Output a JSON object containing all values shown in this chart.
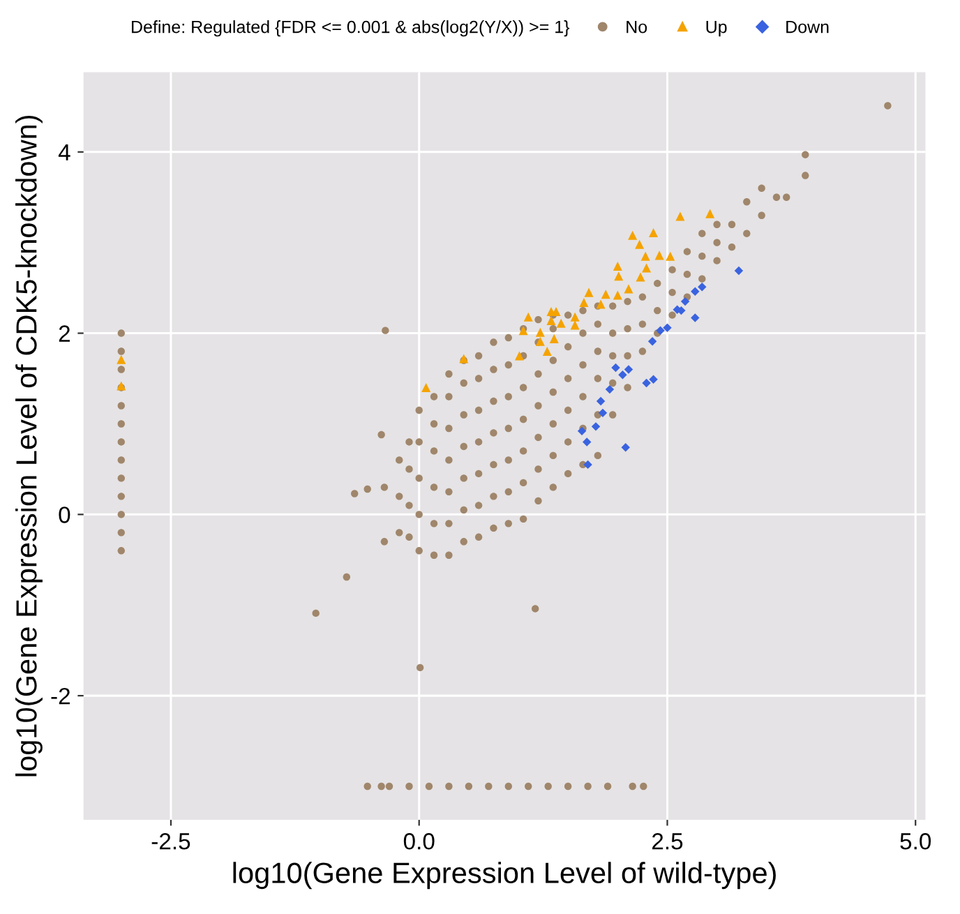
{
  "chart_data": {
    "type": "scatter",
    "xlabel": "log10(Gene Expression Level of wild-type)",
    "ylabel": "log10(Gene Expression Level of CDK5-knockdown)",
    "legend_title": "Define: Regulated {FDR <= 0.001 & abs(log2(Y/X)) >= 1}",
    "legend": "top",
    "grid": true,
    "xlim": [
      -3.38,
      5.1
    ],
    "ylim": [
      -3.37,
      4.88
    ],
    "xticks": [
      -2.5,
      {
        "value": 0,
        "label": "0.0"
      },
      2.5,
      {
        "value": 5,
        "label": "5.0"
      }
    ],
    "yticks": [
      -2,
      0,
      2,
      4
    ],
    "series": [
      {
        "name": "No",
        "color": "#a0866b",
        "marker": "circle",
        "x": [
          -3,
          -3,
          -3,
          -3,
          -3,
          -3,
          -3,
          -3,
          -3,
          -3,
          -3,
          -3,
          -3,
          -0.52,
          -0.38,
          -0.3,
          -0.1,
          0.1,
          0.3,
          0.5,
          0.7,
          0.9,
          1.1,
          1.3,
          1.5,
          1.7,
          1.9,
          2.15,
          2.26,
          4.72,
          3.89,
          3.89,
          -0.34,
          -0.38,
          -0.65,
          -0.52,
          -0.73,
          -1.04,
          0.01,
          1.17,
          -0.35,
          -0.35,
          -0.2,
          -0.2,
          -0.2,
          -0.1,
          -0.1,
          -0.1,
          -0.1,
          0,
          0,
          0,
          0,
          0,
          0.15,
          0.15,
          0.15,
          0.15,
          0.15,
          0.15,
          0.3,
          0.3,
          0.3,
          0.3,
          0.3,
          0.3,
          0.3,
          0.45,
          0.45,
          0.45,
          0.45,
          0.45,
          0.45,
          0.45,
          0.6,
          0.6,
          0.6,
          0.6,
          0.6,
          0.6,
          0.6,
          0.75,
          0.75,
          0.75,
          0.75,
          0.75,
          0.75,
          0.75,
          0.9,
          0.9,
          0.9,
          0.9,
          0.9,
          0.9,
          0.9,
          1.05,
          1.05,
          1.05,
          1.05,
          1.05,
          1.05,
          1.05,
          1.2,
          1.2,
          1.2,
          1.2,
          1.2,
          1.2,
          1.2,
          1.35,
          1.35,
          1.35,
          1.35,
          1.35,
          1.35,
          1.35,
          1.5,
          1.5,
          1.5,
          1.5,
          1.5,
          1.5,
          1.65,
          1.65,
          1.65,
          1.65,
          1.65,
          1.65,
          1.8,
          1.8,
          1.8,
          1.8,
          1.8,
          1.8,
          1.95,
          1.95,
          1.95,
          1.95,
          1.95,
          2.1,
          2.1,
          2.1,
          2.1,
          2.25,
          2.25,
          2.25,
          2.4,
          2.4,
          2.4,
          2.55,
          2.55,
          2.55,
          2.7,
          2.7,
          2.7,
          2.85,
          2.85,
          2.85,
          3.0,
          3.0,
          3.0,
          3.15,
          3.15,
          3.3,
          3.3,
          3.45,
          3.45,
          3.6,
          3.7
        ],
        "values": [
          -0.4,
          -0.2,
          0,
          0.2,
          0.4,
          0.6,
          0.8,
          1.0,
          1.2,
          1.4,
          1.6,
          1.8,
          2.0,
          -3,
          -3,
          -3,
          -3,
          -3,
          -3,
          -3,
          -3,
          -3,
          -3,
          -3,
          -3,
          -3,
          -3,
          -3,
          -3,
          4.51,
          3.97,
          3.74,
          2.03,
          0.88,
          0.23,
          0.28,
          -0.69,
          -1.09,
          -1.69,
          -1.04,
          0.3,
          -0.3,
          -0.2,
          0.2,
          0.6,
          -0.25,
          0.1,
          0.5,
          0.8,
          -0.4,
          0,
          0.4,
          0.8,
          1.15,
          -0.45,
          -0.1,
          0.3,
          0.7,
          1.0,
          1.3,
          -0.45,
          -0.1,
          0.25,
          0.6,
          0.95,
          1.3,
          1.55,
          -0.3,
          0.05,
          0.4,
          0.75,
          1.1,
          1.45,
          1.7,
          -0.25,
          0.1,
          0.45,
          0.8,
          1.15,
          1.5,
          1.75,
          -0.15,
          0.2,
          0.55,
          0.9,
          1.25,
          1.6,
          1.9,
          -0.1,
          0.25,
          0.6,
          0.95,
          1.3,
          1.65,
          1.95,
          -0.05,
          0.35,
          0.7,
          1.05,
          1.4,
          1.75,
          2.05,
          0.15,
          0.5,
          0.85,
          1.2,
          1.55,
          1.9,
          2.15,
          0.3,
          0.65,
          1.0,
          1.35,
          1.7,
          2.05,
          2.2,
          0.45,
          0.8,
          1.15,
          1.5,
          1.85,
          2.2,
          0.55,
          0.95,
          1.3,
          1.65,
          2.0,
          2.25,
          0.65,
          1.1,
          1.5,
          1.8,
          2.1,
          2.3,
          1.1,
          1.45,
          1.75,
          2.0,
          2.3,
          1.4,
          1.75,
          2.05,
          2.35,
          1.8,
          2.1,
          2.4,
          2.0,
          2.25,
          2.55,
          2.2,
          2.45,
          2.7,
          2.4,
          2.65,
          2.9,
          2.6,
          2.85,
          3.1,
          2.8,
          3.0,
          3.2,
          2.95,
          3.2,
          3.1,
          3.45,
          3.3,
          3.6,
          3.5,
          3.5
        ]
      },
      {
        "name": "Up",
        "color": "#f5a300",
        "marker": "triangle",
        "x": [
          -3,
          -3,
          0.07,
          0.45,
          1.1,
          1.33,
          1.38,
          1.33,
          1.43,
          1.22,
          1.22,
          1.36,
          1.29,
          1.57,
          1.57,
          1.66,
          1.71,
          1.83,
          1.88,
          2.0,
          2.01,
          2.0,
          2.11,
          2.23,
          2.29,
          2.28,
          2.15,
          2.22,
          2.36,
          2.42,
          2.53,
          2.63,
          2.93,
          1.05,
          1.01
        ],
        "values": [
          1.71,
          1.42,
          1.4,
          1.72,
          2.18,
          2.24,
          2.24,
          2.14,
          2.11,
          2.01,
          1.91,
          1.94,
          1.8,
          2.18,
          2.09,
          2.34,
          2.45,
          2.32,
          2.43,
          2.42,
          2.63,
          2.74,
          2.49,
          2.62,
          2.72,
          2.85,
          3.08,
          2.98,
          3.11,
          2.86,
          2.85,
          3.29,
          3.32,
          2.03,
          1.75
        ]
      },
      {
        "name": "Down",
        "color": "#3a63e0",
        "marker": "diamond",
        "x": [
          3.22,
          2.85,
          2.78,
          2.68,
          2.6,
          2.64,
          2.78,
          2.5,
          2.43,
          2.35,
          1.98,
          2.05,
          2.11,
          2.36,
          2.29,
          1.92,
          1.83,
          1.85,
          1.78,
          1.64,
          1.69,
          1.7,
          2.08
        ],
        "values": [
          2.69,
          2.51,
          2.46,
          2.35,
          2.26,
          2.25,
          2.17,
          2.06,
          2.03,
          1.91,
          1.62,
          1.54,
          1.6,
          1.49,
          1.45,
          1.38,
          1.25,
          1.12,
          0.97,
          0.92,
          0.8,
          0.55,
          0.74
        ]
      }
    ]
  }
}
